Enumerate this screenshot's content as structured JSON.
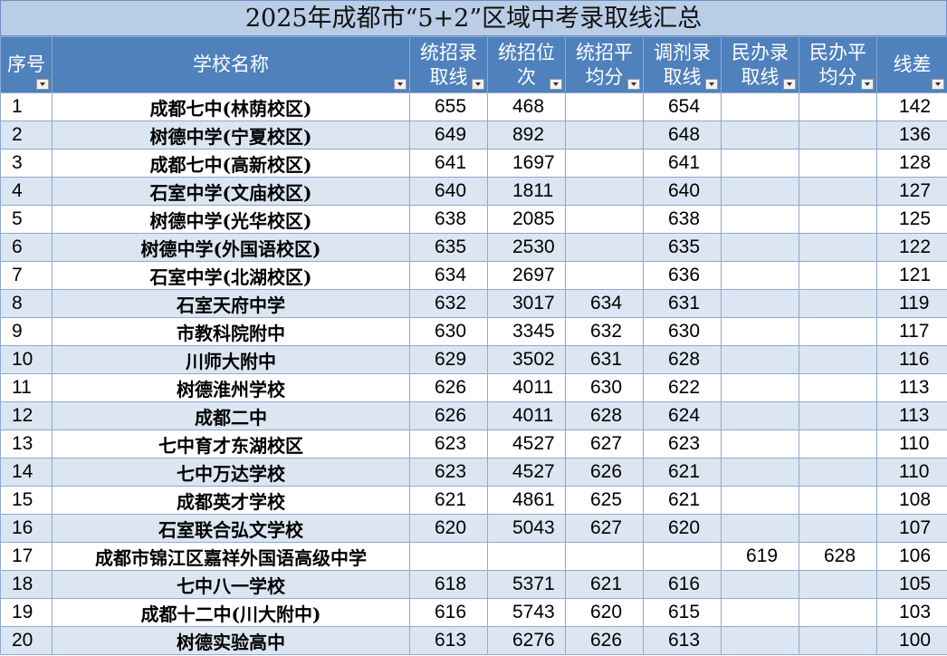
{
  "title": "2025年成都市“5+2”区域中考录取线汇总",
  "headers": {
    "no": "序号",
    "name": "学校名称",
    "unified_line": "统招录取线",
    "unified_rank": "统招位次",
    "unified_avg": "统招平均分",
    "adjust_line": "调剂录取线",
    "private_line": "民办录取线",
    "private_avg": "民办平均分",
    "diff": "线差"
  },
  "rows": [
    {
      "no": "1",
      "name": "成都七中(林荫校区)",
      "unified_line": "655",
      "unified_rank": "468",
      "unified_avg": "",
      "adjust_line": "654",
      "private_line": "",
      "private_avg": "",
      "diff": "142"
    },
    {
      "no": "2",
      "name": "树德中学(宁夏校区)",
      "unified_line": "649",
      "unified_rank": "892",
      "unified_avg": "",
      "adjust_line": "648",
      "private_line": "",
      "private_avg": "",
      "diff": "136"
    },
    {
      "no": "3",
      "name": "成都七中(高新校区)",
      "unified_line": "641",
      "unified_rank": "1697",
      "unified_avg": "",
      "adjust_line": "641",
      "private_line": "",
      "private_avg": "",
      "diff": "128"
    },
    {
      "no": "4",
      "name": "石室中学(文庙校区)",
      "unified_line": "640",
      "unified_rank": "1811",
      "unified_avg": "",
      "adjust_line": "640",
      "private_line": "",
      "private_avg": "",
      "diff": "127"
    },
    {
      "no": "5",
      "name": "树德中学(光华校区)",
      "unified_line": "638",
      "unified_rank": "2085",
      "unified_avg": "",
      "adjust_line": "638",
      "private_line": "",
      "private_avg": "",
      "diff": "125"
    },
    {
      "no": "6",
      "name": "树德中学(外国语校区)",
      "unified_line": "635",
      "unified_rank": "2530",
      "unified_avg": "",
      "adjust_line": "635",
      "private_line": "",
      "private_avg": "",
      "diff": "122"
    },
    {
      "no": "7",
      "name": "石室中学(北湖校区)",
      "unified_line": "634",
      "unified_rank": "2697",
      "unified_avg": "",
      "adjust_line": "636",
      "private_line": "",
      "private_avg": "",
      "diff": "121"
    },
    {
      "no": "8",
      "name": "石室天府中学",
      "unified_line": "632",
      "unified_rank": "3017",
      "unified_avg": "634",
      "adjust_line": "631",
      "private_line": "",
      "private_avg": "",
      "diff": "119"
    },
    {
      "no": "9",
      "name": "市教科院附中",
      "unified_line": "630",
      "unified_rank": "3345",
      "unified_avg": "632",
      "adjust_line": "630",
      "private_line": "",
      "private_avg": "",
      "diff": "117"
    },
    {
      "no": "10",
      "name": "川师大附中",
      "unified_line": "629",
      "unified_rank": "3502",
      "unified_avg": "631",
      "adjust_line": "628",
      "private_line": "",
      "private_avg": "",
      "diff": "116"
    },
    {
      "no": "11",
      "name": "树德淮州学校",
      "unified_line": "626",
      "unified_rank": "4011",
      "unified_avg": "630",
      "adjust_line": "622",
      "private_line": "",
      "private_avg": "",
      "diff": "113"
    },
    {
      "no": "12",
      "name": "成都二中",
      "unified_line": "626",
      "unified_rank": "4011",
      "unified_avg": "628",
      "adjust_line": "624",
      "private_line": "",
      "private_avg": "",
      "diff": "113"
    },
    {
      "no": "13",
      "name": "七中育才东湖校区",
      "unified_line": "623",
      "unified_rank": "4527",
      "unified_avg": "627",
      "adjust_line": "623",
      "private_line": "",
      "private_avg": "",
      "diff": "110"
    },
    {
      "no": "14",
      "name": "七中万达学校",
      "unified_line": "623",
      "unified_rank": "4527",
      "unified_avg": "626",
      "adjust_line": "621",
      "private_line": "",
      "private_avg": "",
      "diff": "110"
    },
    {
      "no": "15",
      "name": "成都英才学校",
      "unified_line": "621",
      "unified_rank": "4861",
      "unified_avg": "625",
      "adjust_line": "621",
      "private_line": "",
      "private_avg": "",
      "diff": "108"
    },
    {
      "no": "16",
      "name": "石室联合弘文学校",
      "unified_line": "620",
      "unified_rank": "5043",
      "unified_avg": "627",
      "adjust_line": "620",
      "private_line": "",
      "private_avg": "",
      "diff": "107"
    },
    {
      "no": "17",
      "name": "成都市锦江区嘉祥外国语高级中学",
      "unified_line": "",
      "unified_rank": "",
      "unified_avg": "",
      "adjust_line": "",
      "private_line": "619",
      "private_avg": "628",
      "diff": "106"
    },
    {
      "no": "18",
      "name": "七中八一学校",
      "unified_line": "618",
      "unified_rank": "5371",
      "unified_avg": "621",
      "adjust_line": "616",
      "private_line": "",
      "private_avg": "",
      "diff": "105"
    },
    {
      "no": "19",
      "name": "成都十二中(川大附中)",
      "unified_line": "616",
      "unified_rank": "5743",
      "unified_avg": "620",
      "adjust_line": "615",
      "private_line": "",
      "private_avg": "",
      "diff": "103"
    },
    {
      "no": "20",
      "name": "树德实验高中",
      "unified_line": "613",
      "unified_rank": "6276",
      "unified_avg": "626",
      "adjust_line": "613",
      "private_line": "",
      "private_avg": "",
      "diff": "100"
    }
  ]
}
